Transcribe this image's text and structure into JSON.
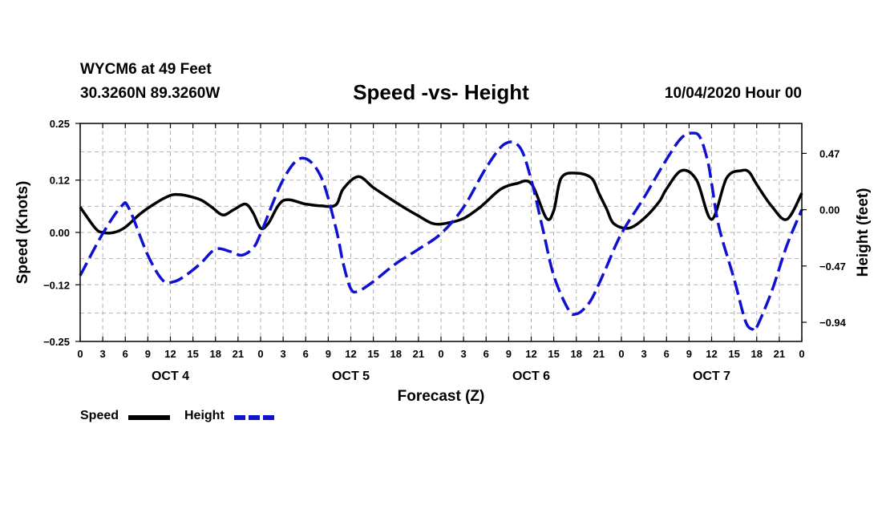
{
  "header": {
    "station": "WYCM6 at 49 Feet",
    "coords": "30.3260N 89.3260W",
    "title": "Speed -vs- Height",
    "date": "10/04/2020 Hour 00"
  },
  "legend": {
    "speed_label": "Speed",
    "height_label": "Height"
  },
  "colors": {
    "speed": "#000000",
    "height": "#1010d0",
    "grid": "#b0b0b0"
  },
  "chart_data": {
    "type": "line",
    "title": "Speed -vs- Height",
    "xlabel": "Forecast (Z)",
    "ylabel": "Speed (Knots)",
    "y2label": "Height (feet)",
    "xlim": [
      0,
      96
    ],
    "ylim": [
      -0.25,
      0.25
    ],
    "y2lim": [
      -1.1,
      0.72
    ],
    "x_ticks": [
      0,
      3,
      6,
      9,
      12,
      15,
      18,
      21,
      24,
      27,
      30,
      33,
      36,
      39,
      42,
      45,
      48,
      51,
      54,
      57,
      60,
      63,
      66,
      69,
      72,
      75,
      78,
      81,
      84,
      87,
      90,
      93,
      96
    ],
    "x_tick_labels": [
      "0",
      "3",
      "6",
      "9",
      "12",
      "15",
      "18",
      "21",
      "0",
      "3",
      "6",
      "9",
      "12",
      "15",
      "18",
      "21",
      "0",
      "3",
      "6",
      "9",
      "12",
      "15",
      "18",
      "21",
      "0",
      "3",
      "6",
      "9",
      "12",
      "15",
      "18",
      "21",
      "0"
    ],
    "y_ticks": [
      0.25,
      0.12,
      0.0,
      -0.12,
      -0.25
    ],
    "y_tick_labels": [
      "0.25",
      "0.12",
      "0.00",
      "−0.12",
      "−0.25"
    ],
    "y2_ticks": [
      0.47,
      0.0,
      -0.47,
      -0.94
    ],
    "y2_tick_labels": [
      "0.47",
      "0.00",
      "−0.47",
      "−0.94"
    ],
    "day_labels": [
      {
        "label": "OCT 4",
        "x": 12
      },
      {
        "label": "OCT 5",
        "x": 36
      },
      {
        "label": "OCT 6",
        "x": 60
      },
      {
        "label": "OCT 7",
        "x": 84
      }
    ],
    "grid": true,
    "legend_position": "bottom-left",
    "series": [
      {
        "name": "Speed",
        "axis": "left",
        "style": "solid",
        "x": [
          0,
          2,
          3,
          4.5,
          6,
          8,
          10,
          12,
          13,
          14,
          16,
          17.5,
          19,
          20.5,
          22,
          23,
          24,
          25,
          27,
          30,
          32,
          34,
          35,
          37,
          39,
          41,
          43,
          45,
          47,
          49,
          51,
          53,
          54,
          56,
          58,
          60,
          62,
          63,
          64,
          66,
          68,
          69,
          70,
          71,
          73,
          75,
          77,
          78,
          80,
          82,
          84,
          86,
          88,
          89,
          90,
          92,
          94,
          96
        ],
        "y": [
          0.058,
          0.01,
          0.0,
          0.0,
          0.012,
          0.043,
          0.067,
          0.085,
          0.087,
          0.085,
          0.075,
          0.058,
          0.04,
          0.053,
          0.065,
          0.045,
          0.01,
          0.02,
          0.073,
          0.065,
          0.061,
          0.063,
          0.1,
          0.128,
          0.103,
          0.08,
          0.058,
          0.038,
          0.02,
          0.022,
          0.032,
          0.055,
          0.07,
          0.1,
          0.112,
          0.112,
          0.033,
          0.05,
          0.125,
          0.136,
          0.125,
          0.09,
          0.055,
          0.02,
          0.01,
          0.032,
          0.07,
          0.1,
          0.142,
          0.12,
          0.03,
          0.125,
          0.142,
          0.138,
          0.11,
          0.06,
          0.03,
          0.09
        ]
      },
      {
        "name": "Height",
        "axis": "right",
        "style": "dashed",
        "x": [
          0,
          3,
          5.5,
          6.5,
          9,
          11,
          12.5,
          14,
          16,
          18,
          20,
          21.5,
          23,
          24,
          27,
          29.5,
          32,
          34,
          35,
          36,
          37,
          39,
          42,
          45,
          48,
          51,
          54,
          56.5,
          58.5,
          60,
          61.5,
          63,
          65,
          66,
          67,
          68,
          69,
          70,
          72,
          75,
          78,
          80,
          81.5,
          82.5,
          83.5,
          84,
          85,
          87,
          88.5,
          89.5,
          90,
          92,
          94,
          96
        ],
        "y": [
          -0.55,
          -0.2,
          0.03,
          0.01,
          -0.38,
          -0.59,
          -0.6,
          -0.55,
          -0.45,
          -0.33,
          -0.35,
          -0.38,
          -0.32,
          -0.2,
          0.25,
          0.43,
          0.28,
          -0.15,
          -0.45,
          -0.66,
          -0.68,
          -0.6,
          -0.45,
          -0.33,
          -0.2,
          0.02,
          0.35,
          0.55,
          0.52,
          0.25,
          -0.15,
          -0.55,
          -0.84,
          -0.87,
          -0.83,
          -0.75,
          -0.62,
          -0.48,
          -0.2,
          0.1,
          0.42,
          0.6,
          0.64,
          0.6,
          0.4,
          0.22,
          -0.15,
          -0.58,
          -0.93,
          -1.0,
          -0.98,
          -0.68,
          -0.3,
          0.0
        ]
      }
    ]
  }
}
